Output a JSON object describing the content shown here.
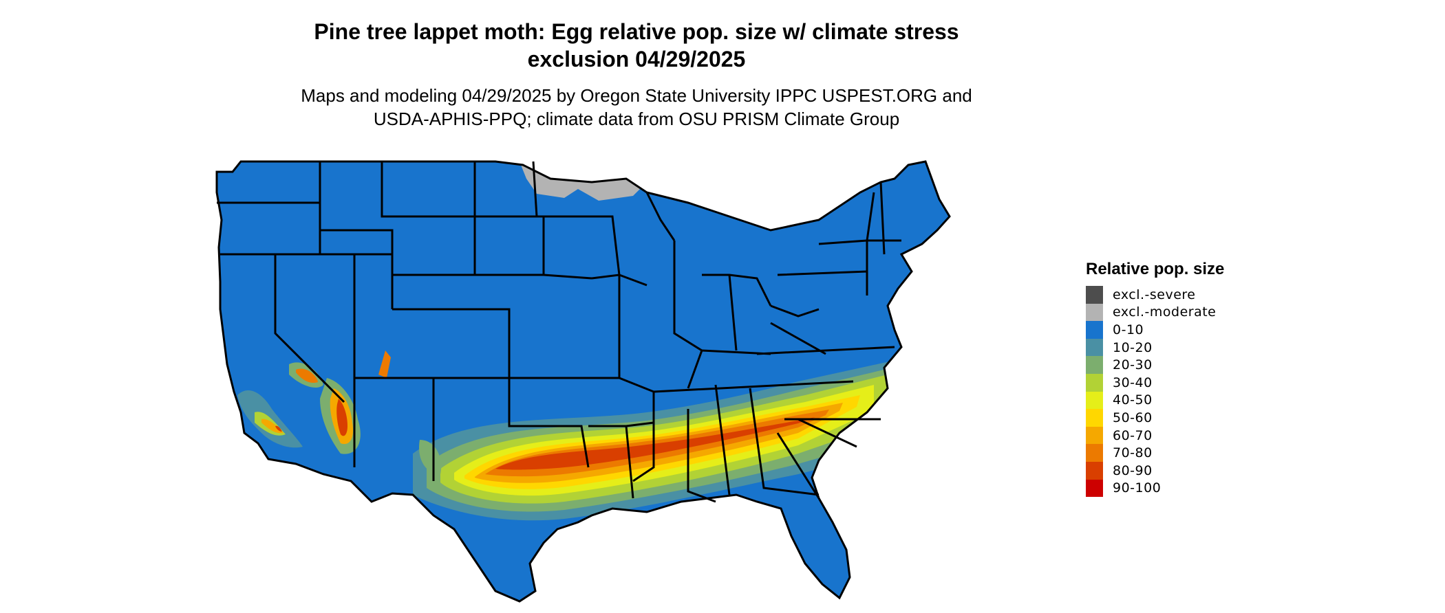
{
  "title_line1": "Pine tree lappet moth: Egg relative pop. size w/ climate stress",
  "title_line2": "exclusion 04/29/2025",
  "subtitle_line1": "Maps and modeling 04/29/2025 by Oregon State University IPPC USPEST.ORG and",
  "subtitle_line2": "USDA-APHIS-PPQ; climate data from OSU PRISM Climate Group",
  "legend": {
    "title": "Relative pop. size",
    "items": [
      {
        "label": "excl.-severe",
        "color": "#4d4d4d"
      },
      {
        "label": "excl.-moderate",
        "color": "#b3b3b3"
      },
      {
        "label": "0-10",
        "color": "#1874cd"
      },
      {
        "label": "10-20",
        "color": "#4a90a4"
      },
      {
        "label": "20-30",
        "color": "#7cae6e"
      },
      {
        "label": "30-40",
        "color": "#b2d235"
      },
      {
        "label": "40-50",
        "color": "#e5ee19"
      },
      {
        "label": "50-60",
        "color": "#ffd700"
      },
      {
        "label": "60-70",
        "color": "#f5a800"
      },
      {
        "label": "70-80",
        "color": "#ec7a00"
      },
      {
        "label": "80-90",
        "color": "#d93f00"
      },
      {
        "label": "90-100",
        "color": "#cd0000"
      }
    ]
  }
}
